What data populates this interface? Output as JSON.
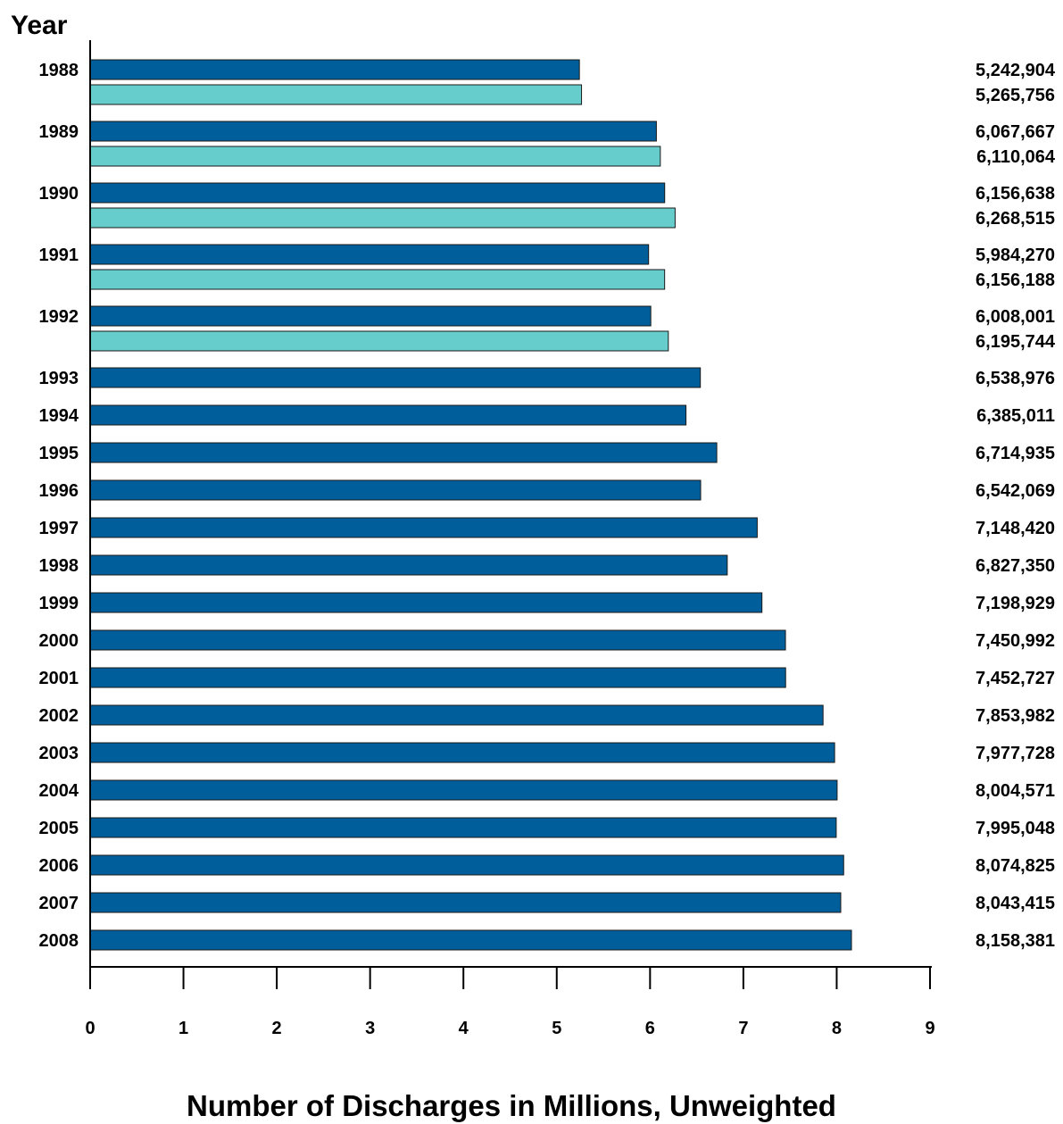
{
  "chart_data": {
    "type": "bar",
    "orientation": "horizontal",
    "ylabel": "Year",
    "xlabel": "Number of Discharges in Millions, Unweighted",
    "xlim": [
      0,
      9
    ],
    "xticks": [
      "0",
      "1",
      "2",
      "3",
      "4",
      "5",
      "6",
      "7",
      "8",
      "9"
    ],
    "grid": false,
    "colors": {
      "primary": "#005f9a",
      "secondary": "#66cccc"
    },
    "categories": [
      {
        "year": "1988",
        "values": [
          5.242904,
          5.265756
        ],
        "labels": [
          "5,242,904",
          "5,265,756"
        ]
      },
      {
        "year": "1989",
        "values": [
          6.067667,
          6.110064
        ],
        "labels": [
          "6,067,667",
          "6,110,064"
        ]
      },
      {
        "year": "1990",
        "values": [
          6.156638,
          6.268515
        ],
        "labels": [
          "6,156,638",
          "6,268,515"
        ]
      },
      {
        "year": "1991",
        "values": [
          5.98427,
          6.156188
        ],
        "labels": [
          "5,984,270",
          "6,156,188"
        ]
      },
      {
        "year": "1992",
        "values": [
          6.008001,
          6.195744
        ],
        "labels": [
          "6,008,001",
          "6,195,744"
        ]
      },
      {
        "year": "1993",
        "values": [
          6.538976
        ],
        "labels": [
          "6,538,976"
        ]
      },
      {
        "year": "1994",
        "values": [
          6.385011
        ],
        "labels": [
          "6,385,011"
        ]
      },
      {
        "year": "1995",
        "values": [
          6.714935
        ],
        "labels": [
          "6,714,935"
        ]
      },
      {
        "year": "1996",
        "values": [
          6.542069
        ],
        "labels": [
          "6,542,069"
        ]
      },
      {
        "year": "1997",
        "values": [
          7.14842
        ],
        "labels": [
          "7,148,420"
        ]
      },
      {
        "year": "1998",
        "values": [
          6.82735
        ],
        "labels": [
          "6,827,350"
        ]
      },
      {
        "year": "1999",
        "values": [
          7.198929
        ],
        "labels": [
          "7,198,929"
        ]
      },
      {
        "year": "2000",
        "values": [
          7.450992
        ],
        "labels": [
          "7,450,992"
        ]
      },
      {
        "year": "2001",
        "values": [
          7.452727
        ],
        "labels": [
          "7,452,727"
        ]
      },
      {
        "year": "2002",
        "values": [
          7.853982
        ],
        "labels": [
          "7,853,982"
        ]
      },
      {
        "year": "2003",
        "values": [
          7.977728
        ],
        "labels": [
          "7,977,728"
        ]
      },
      {
        "year": "2004",
        "values": [
          8.004571
        ],
        "labels": [
          "8,004,571"
        ]
      },
      {
        "year": "2005",
        "values": [
          7.995048
        ],
        "labels": [
          "7,995,048"
        ]
      },
      {
        "year": "2006",
        "values": [
          8.074825
        ],
        "labels": [
          "8,074,825"
        ]
      },
      {
        "year": "2007",
        "values": [
          8.043415
        ],
        "labels": [
          "8,043,415"
        ]
      },
      {
        "year": "2008",
        "values": [
          8.158381
        ],
        "labels": [
          "8,158,381"
        ]
      }
    ]
  }
}
